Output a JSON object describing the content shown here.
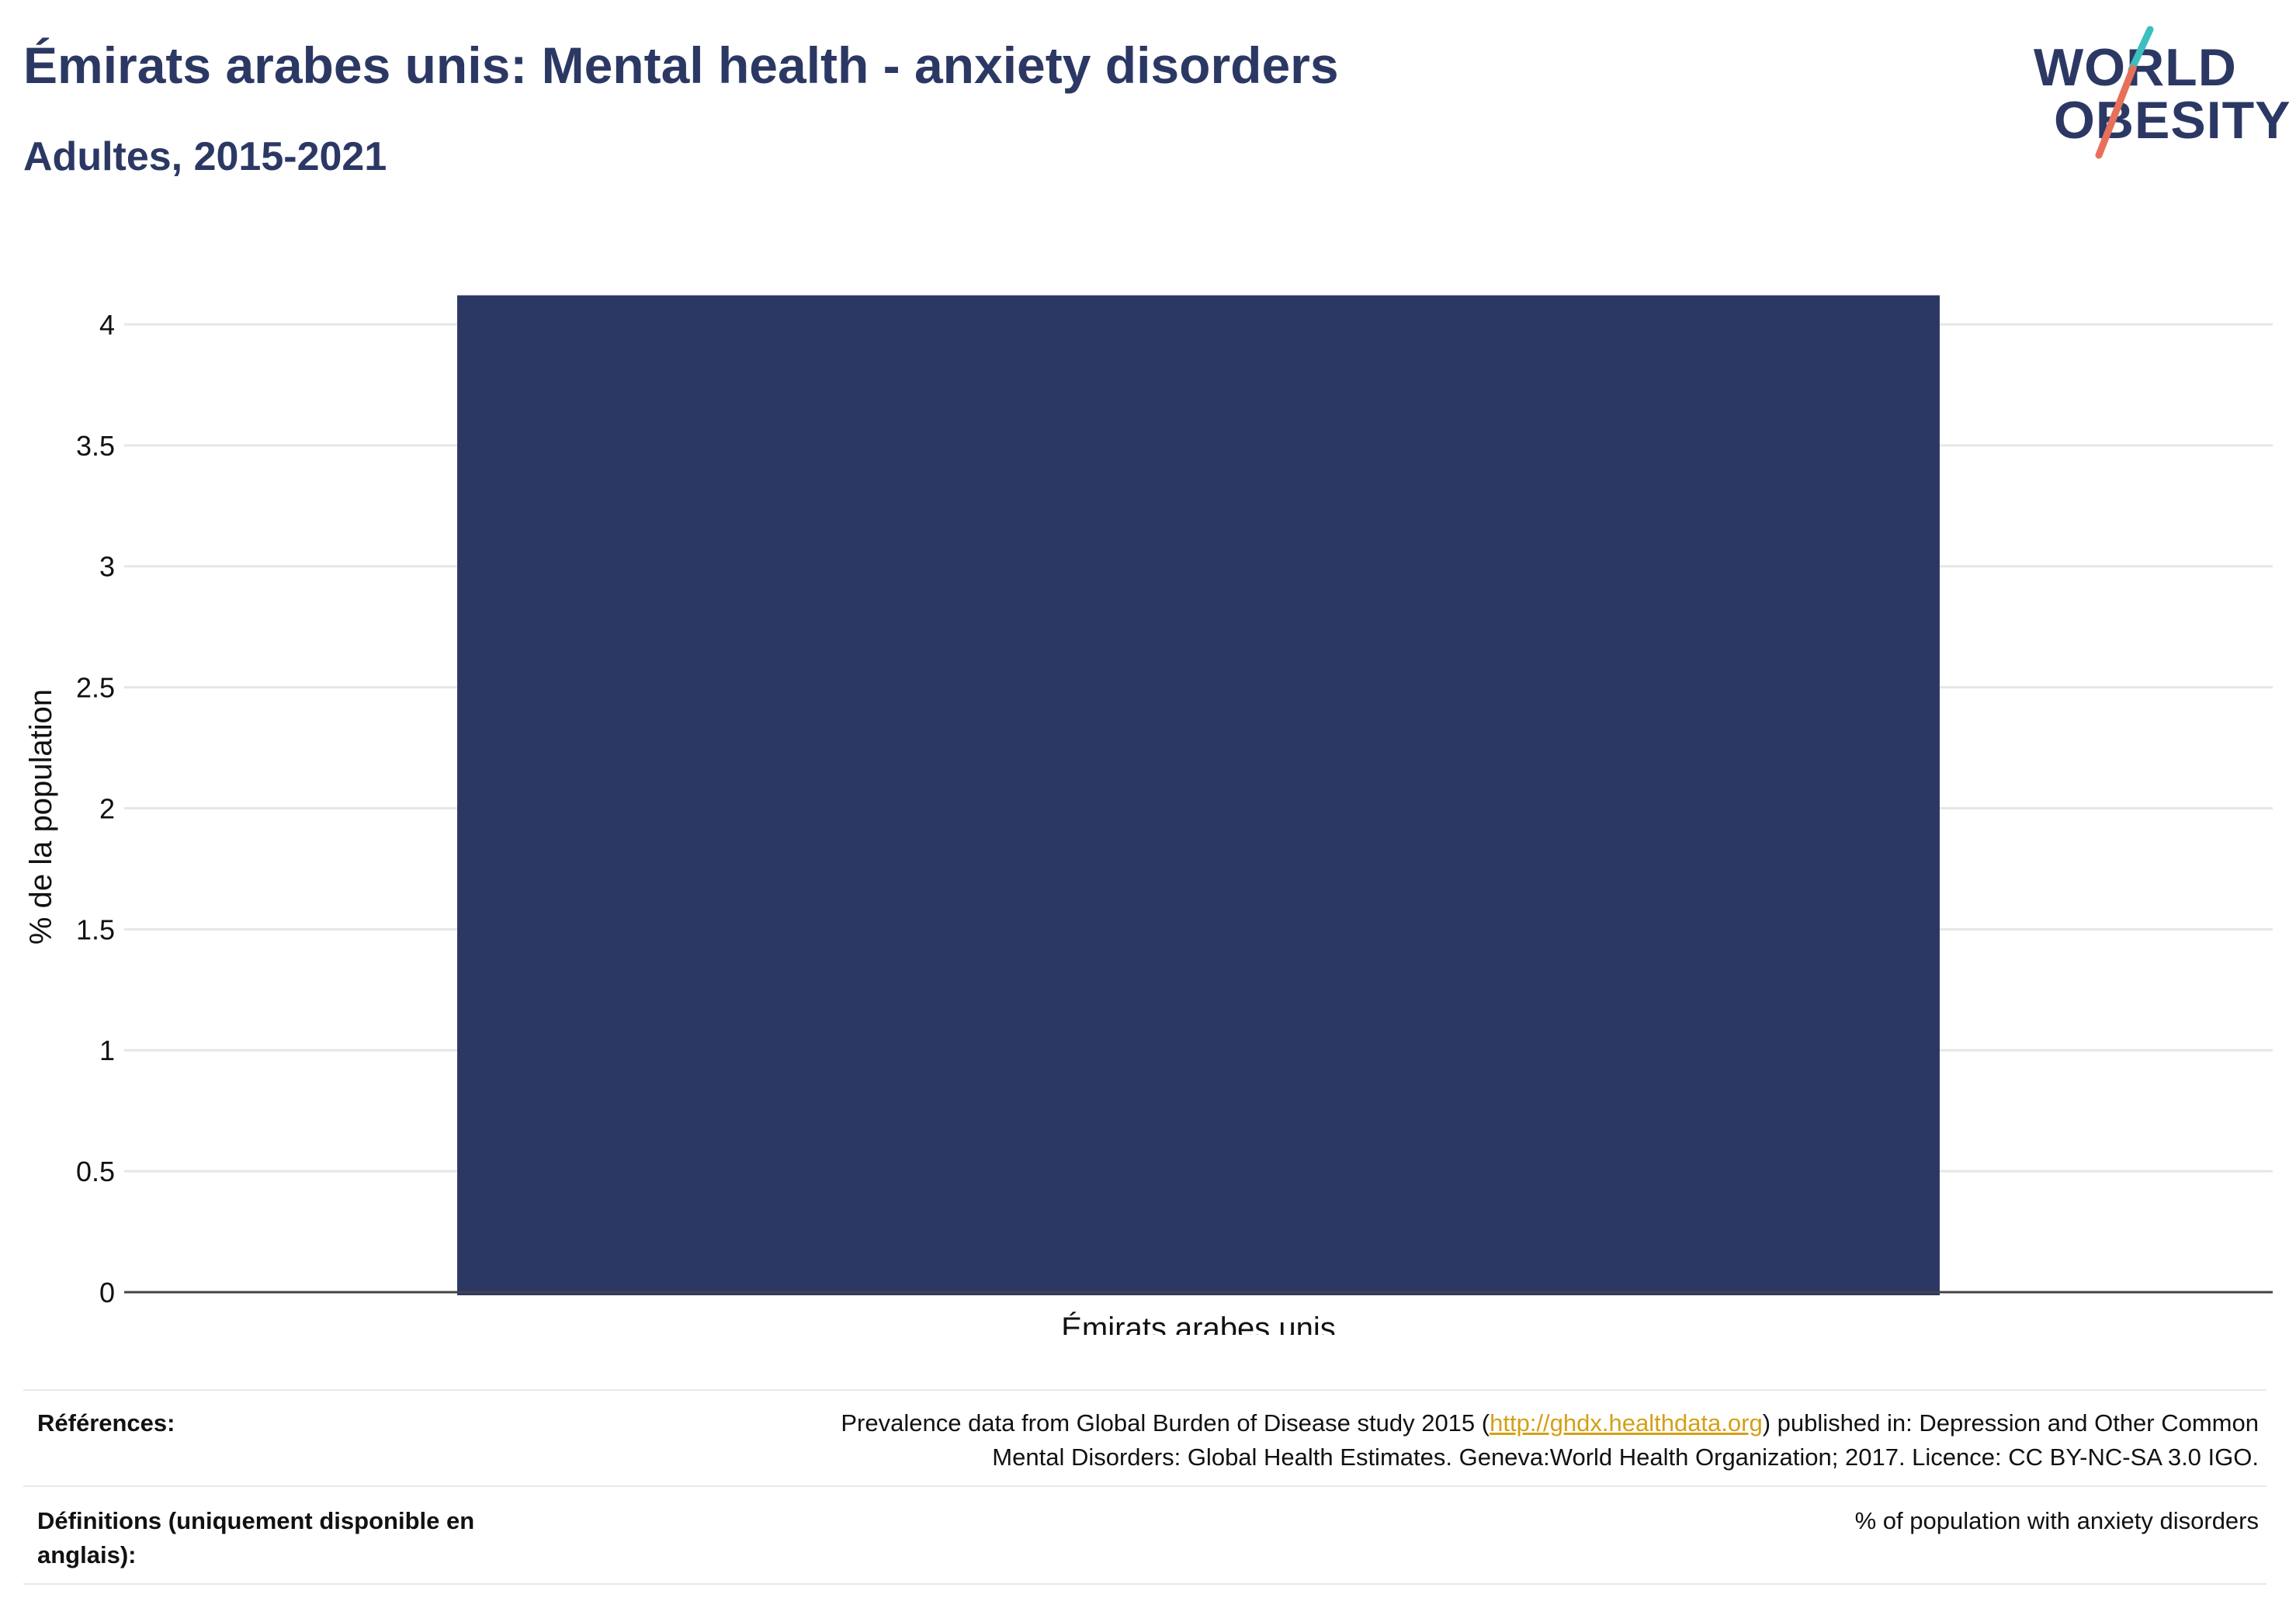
{
  "header": {
    "title": "Émirats arabes unis: Mental health - anxiety disorders",
    "subtitle": "Adultes, 2015-2021"
  },
  "logo": {
    "line1": "WORLD",
    "line2": "OBESITY",
    "accent_teal": "#3bbfbf",
    "accent_coral": "#e8705a"
  },
  "colors": {
    "bar": "#2c3864",
    "title": "#2c3864",
    "grid": "#e6e6e6",
    "link": "#d4a017"
  },
  "chart_data": {
    "type": "bar",
    "categories": [
      "Émirats arabes unis"
    ],
    "values": [
      4.12
    ],
    "ylabel": "% de la population",
    "xlabel": "",
    "ylim": [
      0,
      4.25
    ],
    "yticks": [
      0,
      0.5,
      1,
      1.5,
      2,
      2.5,
      3,
      3.5,
      4
    ],
    "ytick_labels": [
      "0",
      "0.5",
      "1",
      "1.5",
      "2",
      "2.5",
      "3",
      "3.5",
      "4"
    ],
    "grid": true
  },
  "footer": {
    "references_label": "Références:",
    "references_text_before": "Prevalence data from Global Burden of Disease study 2015 (",
    "references_link": "http://ghdx.healthdata.org",
    "references_text_after": ") published in: Depression and Other Common",
    "references_text_line2": "Mental Disorders: Global Health Estimates. Geneva:World Health Organization; 2017. Licence: CC BY-NC-SA 3.0 IGO.",
    "definitions_label_line1": "Définitions (uniquement disponible en",
    "definitions_label_line2": "anglais):",
    "definitions_text": "% of population with anxiety disorders"
  }
}
